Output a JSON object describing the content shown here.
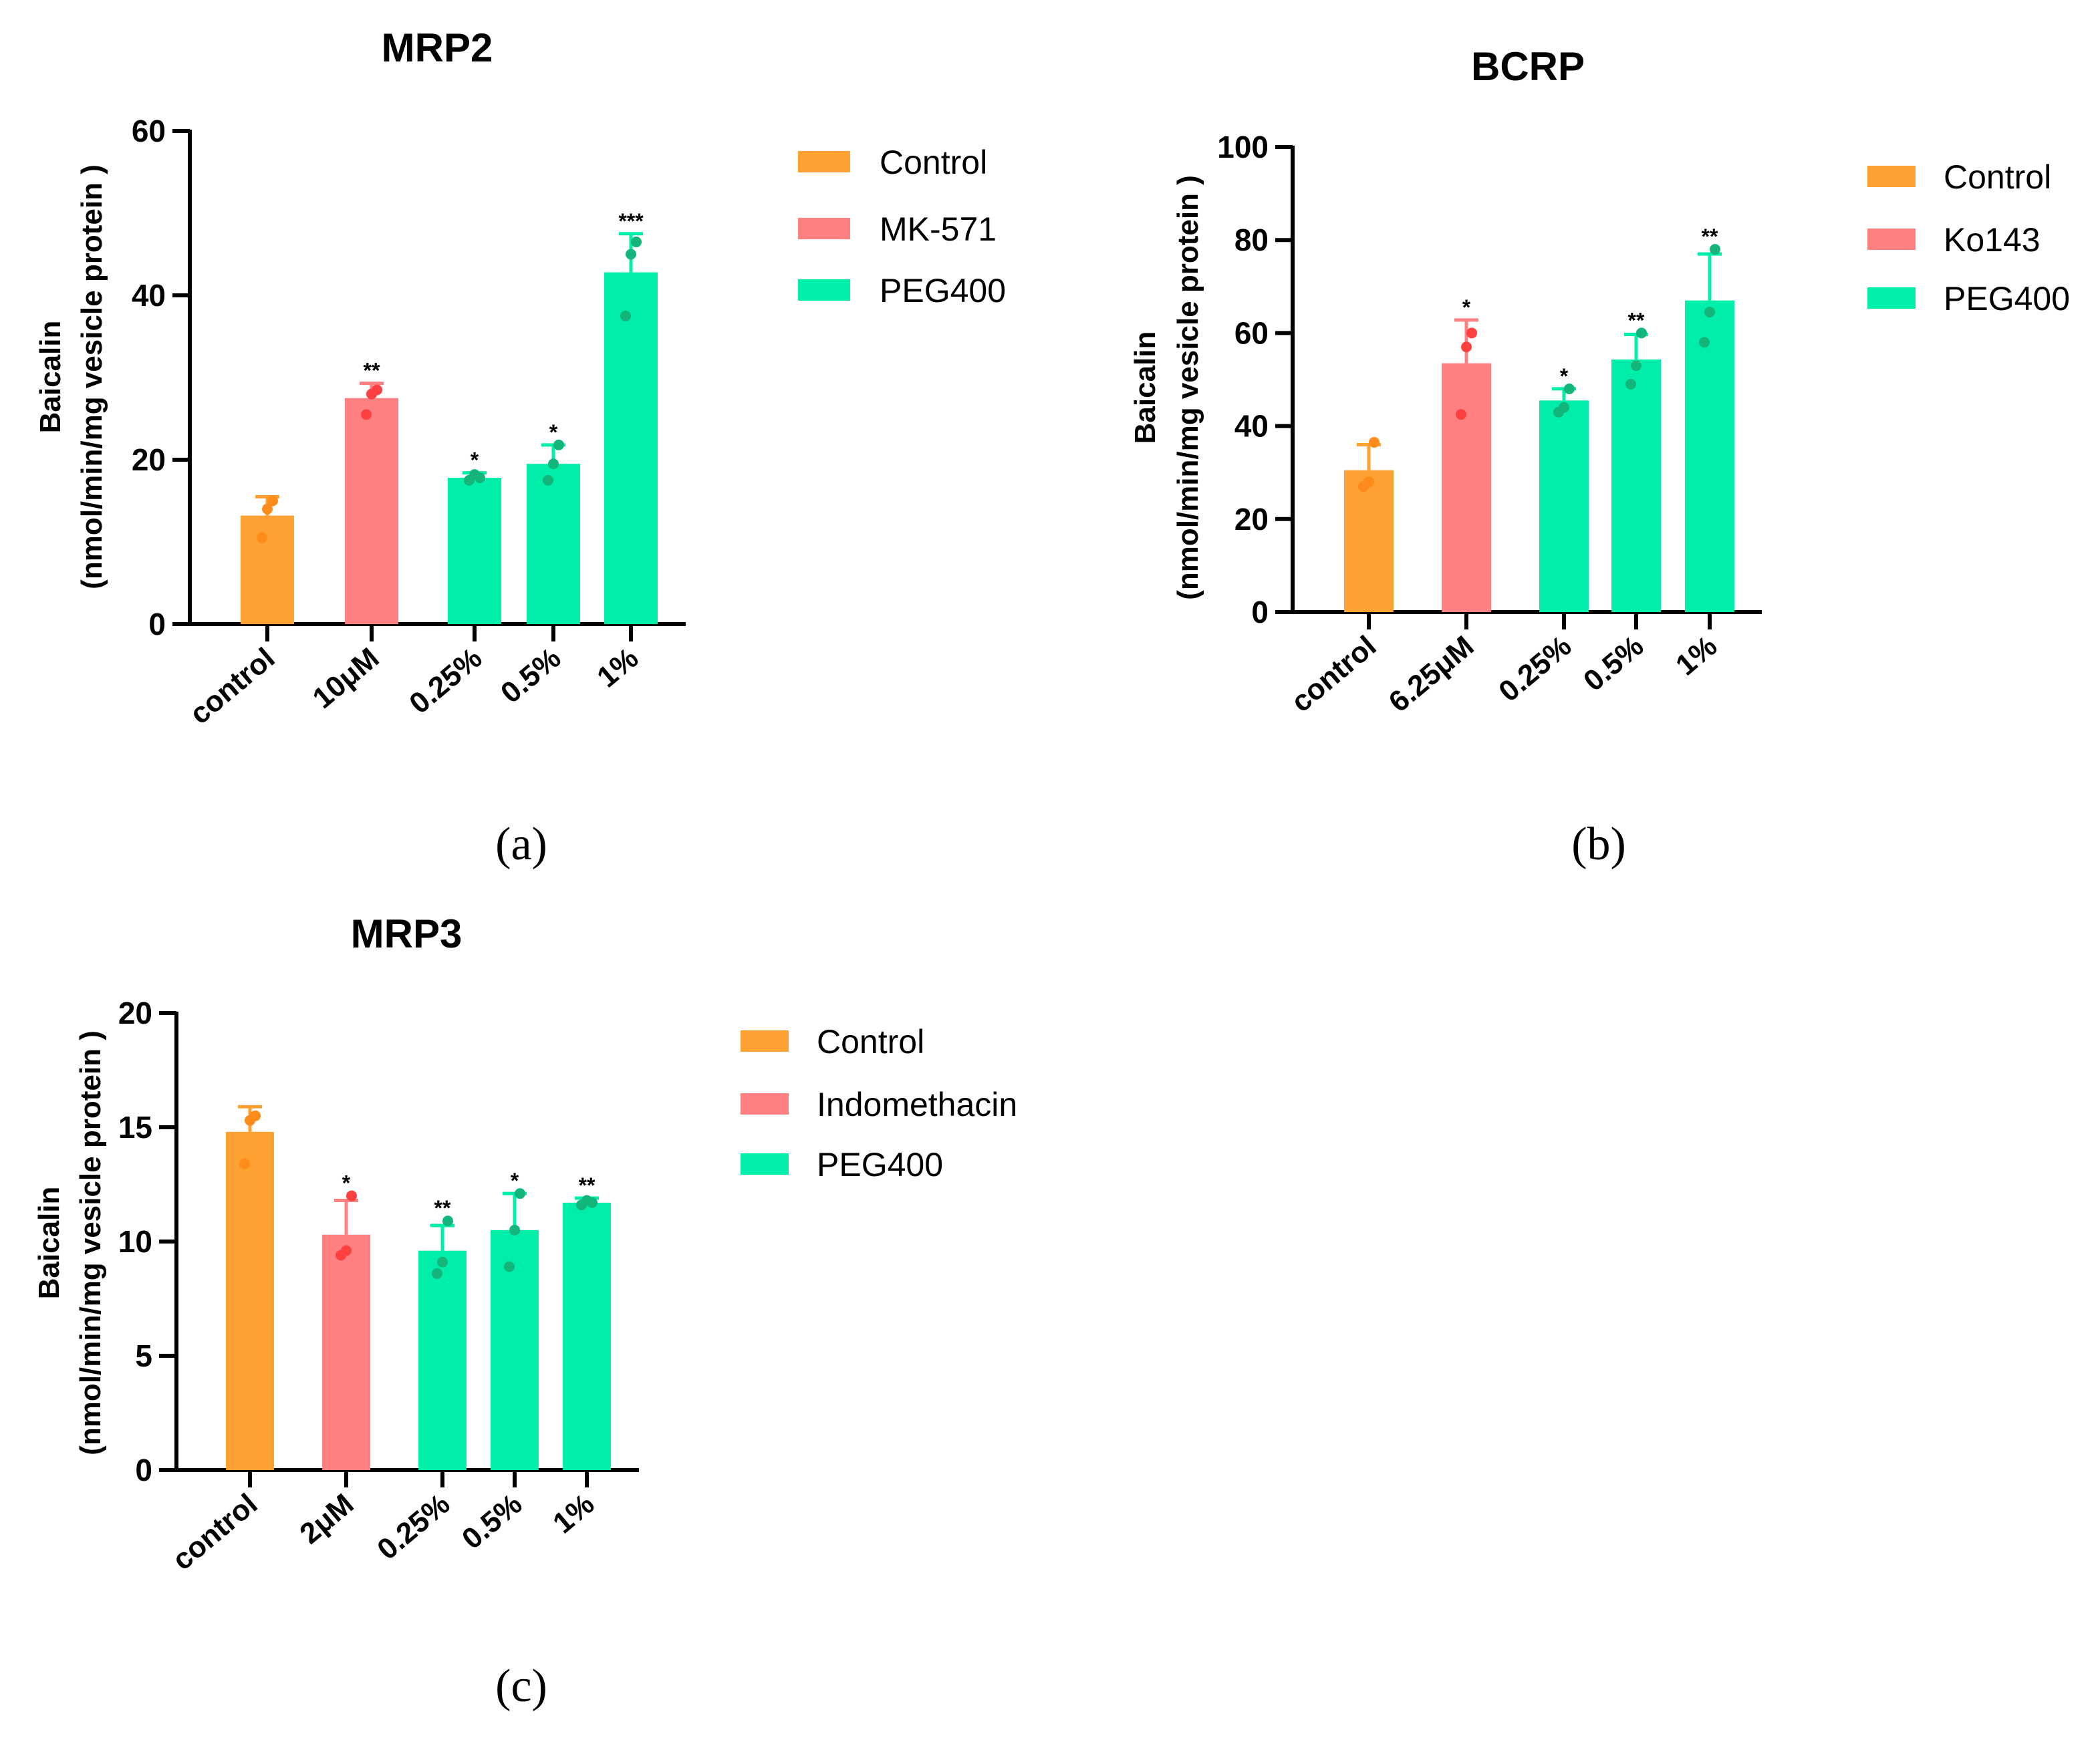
{
  "colors": {
    "control": "#FFA033",
    "inhibitor": "#FF8080",
    "peg400": "#00EEAA",
    "control_pt": "#FF8C1A",
    "inhibitor_pt": "#FF4040",
    "peg400_pt": "#14B57A"
  },
  "chart_data": [
    {
      "type": "bar",
      "panel_label": "(a)",
      "title": "MRP2",
      "ylabel": [
        "Baicalin",
        "(nmol/min/mg vesicle protein  )"
      ],
      "ylim": [
        0,
        60
      ],
      "yticks": [
        "0",
        "20",
        "40",
        "60"
      ],
      "ytick_values": [
        0,
        20,
        40,
        60
      ],
      "categories": [
        "control",
        "10μM",
        "0.25%",
        "0.5%",
        "1%"
      ],
      "groups": [
        "control",
        "inhibitor",
        "peg400",
        "peg400",
        "peg400"
      ],
      "values": [
        13.2,
        27.5,
        17.8,
        19.5,
        42.8
      ],
      "error_upper": [
        15.5,
        29.3,
        18.4,
        21.8,
        47.5
      ],
      "points": [
        [
          10.5,
          14,
          15
        ],
        [
          25.5,
          28,
          28.5
        ],
        [
          17.5,
          18.2,
          17.8
        ],
        [
          17.5,
          19.5,
          21.8
        ],
        [
          37.5,
          45,
          46.5
        ]
      ],
      "significance": [
        "",
        "**",
        "*",
        "*",
        "***"
      ],
      "legend": [
        "Control",
        "MK-571",
        "PEG400"
      ],
      "legend_position": "right"
    },
    {
      "type": "bar",
      "panel_label": "(b)",
      "title": "BCRP",
      "ylabel": [
        "Baicalin",
        "(nmol/min/mg vesicle protein  )"
      ],
      "ylim": [
        0,
        100
      ],
      "yticks": [
        "0",
        "20",
        "40",
        "60",
        "80",
        "100"
      ],
      "ytick_values": [
        0,
        20,
        40,
        60,
        80,
        100
      ],
      "categories": [
        "control",
        "6.25μM",
        "0.25%",
        "0.5%",
        "1%"
      ],
      "groups": [
        "control",
        "inhibitor",
        "peg400",
        "peg400",
        "peg400"
      ],
      "values": [
        30.5,
        53.5,
        45.5,
        54.3,
        67
      ],
      "error_upper": [
        36,
        62.8,
        48,
        59.7,
        77
      ],
      "points": [
        [
          27,
          28,
          36.5
        ],
        [
          42.5,
          57,
          60
        ],
        [
          43,
          44,
          48
        ],
        [
          49,
          53,
          60
        ],
        [
          58,
          64.5,
          78
        ]
      ],
      "significance": [
        "",
        "*",
        "*",
        "**",
        "**"
      ],
      "legend": [
        "Control",
        "Ko143",
        "PEG400"
      ],
      "legend_position": "right"
    },
    {
      "type": "bar",
      "panel_label": "(c)",
      "title": "MRP3",
      "ylabel": [
        "Baicalin",
        "(nmol/min/mg vesicle protein  )"
      ],
      "ylim": [
        0,
        20
      ],
      "yticks": [
        "0",
        "5",
        "10",
        "15",
        "20"
      ],
      "ytick_values": [
        0,
        5,
        10,
        15,
        20
      ],
      "categories": [
        "control",
        "2μM",
        "0.25%",
        "0.5%",
        "1%"
      ],
      "groups": [
        "control",
        "inhibitor",
        "peg400",
        "peg400",
        "peg400"
      ],
      "values": [
        14.8,
        10.3,
        9.6,
        10.5,
        11.7
      ],
      "error_upper": [
        15.9,
        11.8,
        10.7,
        12.1,
        11.9
      ],
      "points": [
        [
          13.4,
          15.3,
          15.5
        ],
        [
          9.4,
          9.6,
          12
        ],
        [
          8.6,
          9.1,
          10.9
        ],
        [
          8.9,
          10.5,
          12.1
        ],
        [
          11.6,
          11.8,
          11.7
        ]
      ],
      "significance": [
        "",
        "*",
        "**",
        "*",
        "**"
      ],
      "legend": [
        "Control",
        "Indomethacin",
        "PEG400"
      ],
      "legend_position": "right"
    }
  ]
}
